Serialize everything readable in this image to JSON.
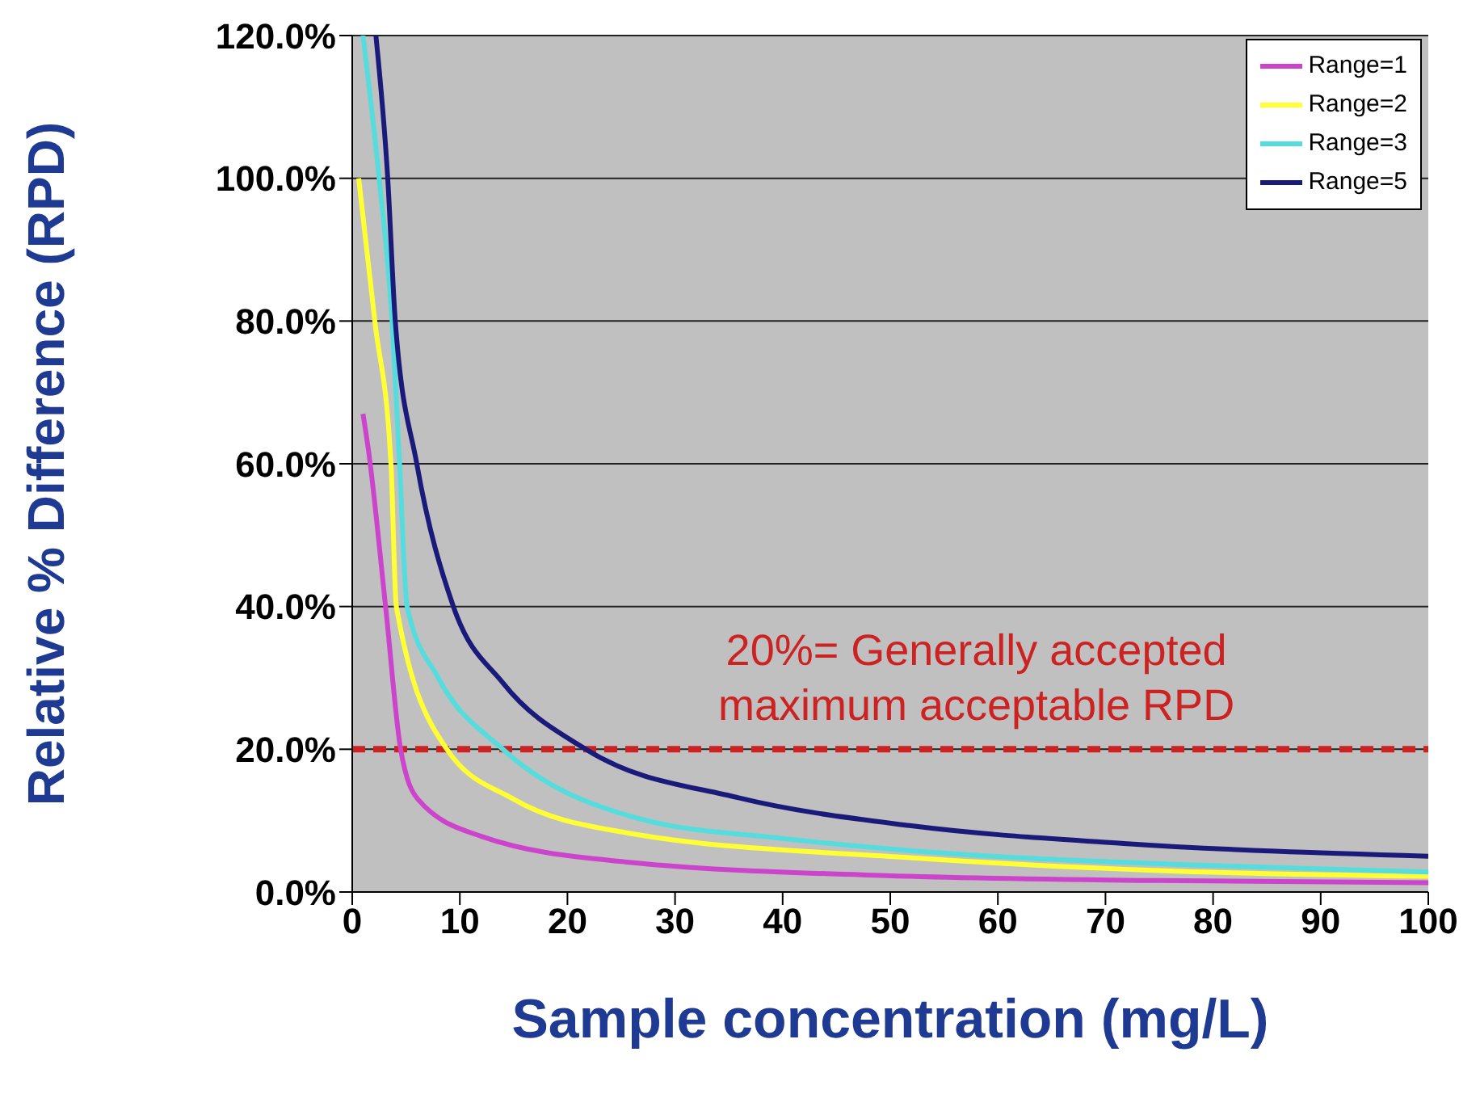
{
  "chart_data": {
    "type": "line",
    "xlabel": "Sample concentration (mg/L)",
    "ylabel": "Relative % Difference (RPD)",
    "xlim": [
      0,
      100
    ],
    "xticks": [
      0,
      10,
      20,
      30,
      40,
      50,
      60,
      70,
      80,
      90,
      100
    ],
    "ylim": [
      0,
      120
    ],
    "yticks": [
      {
        "value": 0,
        "label": "0.0%"
      },
      {
        "value": 20,
        "label": "20.0%"
      },
      {
        "value": 40,
        "label": "40.0%"
      },
      {
        "value": 60,
        "label": "60.0%"
      },
      {
        "value": 80,
        "label": "80.0%"
      },
      {
        "value": 100,
        "label": "100.0%"
      },
      {
        "value": 120,
        "label": "120.0%"
      }
    ],
    "grid": "y",
    "legend": "top right",
    "marker": "none",
    "line_style": "solid",
    "series": [
      {
        "name": "Range=1",
        "color": "#cc44cc",
        "x": [
          1,
          1.5,
          3.1,
          4.5,
          6.1,
          12,
          25.5,
          51.8,
          75,
          100
        ],
        "values": [
          67,
          62,
          40,
          20,
          13,
          7.8,
          4.2,
          2.2,
          1.6,
          1.3
        ]
      },
      {
        "name": "Range=2",
        "color": "#ffff33",
        "x": [
          0.6,
          2.1,
          3.6,
          4.1,
          8.8,
          15,
          25.5,
          51.8,
          75,
          100
        ],
        "values": [
          100,
          80,
          60,
          40,
          20,
          13,
          8.3,
          4.8,
          3,
          2.2
        ]
      },
      {
        "name": "Range=3",
        "color": "#55dddd",
        "x": [
          1,
          2.5,
          3.7,
          4.4,
          5.1,
          8,
          14,
          26.6,
          40,
          51.8,
          78,
          100
        ],
        "values": [
          120,
          100,
          80,
          60,
          40,
          30,
          20,
          10.3,
          7.5,
          5.8,
          3.8,
          2.8
        ]
      },
      {
        "name": "Range=5",
        "color": "#1a1a7a",
        "x": [
          2.2,
          3.3,
          4,
          6,
          9.4,
          14,
          21.7,
          35.9,
          51.8,
          71.7,
          100
        ],
        "values": [
          120,
          100,
          80,
          60,
          40,
          29.3,
          20,
          13.2,
          9.3,
          6.8,
          5
        ]
      }
    ],
    "ref_lines": [
      {
        "axis": "y",
        "value": 20,
        "label": "20%= Generally accepted maximum acceptable RPD",
        "color": "#cc2222",
        "line_style": "dashed"
      }
    ]
  }
}
